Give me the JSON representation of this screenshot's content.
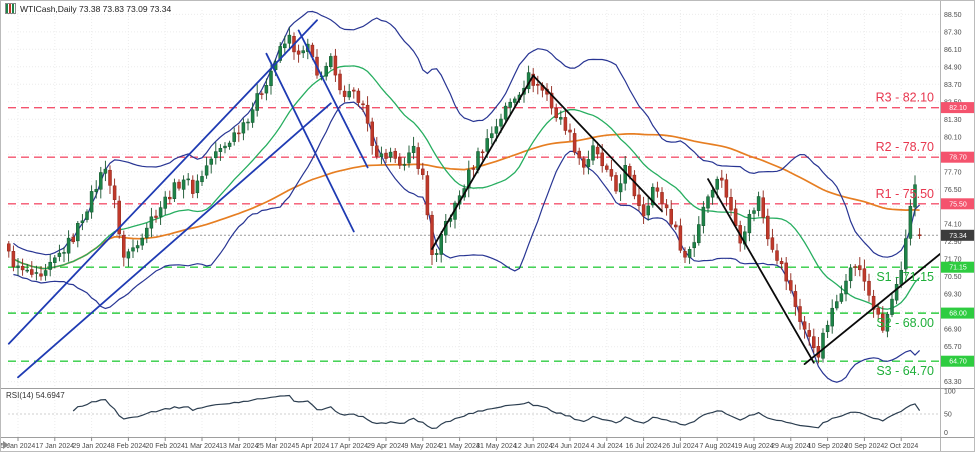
{
  "window": {
    "title": "WTICash,Daily 73.38 73.83 73.09 73.34"
  },
  "colors": {
    "up": "#1d8348",
    "up_stroke": "#14532d",
    "down": "#c0392b",
    "down_stroke": "#8e2418",
    "bollinger": "#283593",
    "ma_fast": "#27ae60",
    "ma_slow": "#e67e22",
    "trend_blue": "#1f3bb3",
    "trend_black": "#0a0a0a",
    "resistance": "#f4536d",
    "resistance_text": "#e8374f",
    "support": "#2ecc40",
    "support_text": "#1faf3a",
    "grid": "#ececec",
    "axis_text": "#4a4a4a",
    "current_badge": "#3d3d3d",
    "rsi_line": "#2c3e50"
  },
  "chart_data": {
    "type": "candlestick",
    "symbol": "WTICash",
    "timeframe": "Daily",
    "current_bar": {
      "open": 73.38,
      "high": 73.83,
      "low": 73.09,
      "close": 73.34
    },
    "current_price": 73.34,
    "y_ticks": [
      63.3,
      64.5,
      65.7,
      66.9,
      68.1,
      69.3,
      70.5,
      71.7,
      72.9,
      74.1,
      75.3,
      76.5,
      77.7,
      78.9,
      80.1,
      81.3,
      82.5,
      83.7,
      84.9,
      86.1,
      87.3,
      88.5
    ],
    "x_labels": [
      "5 Jan 2024",
      "17 Jan 2024",
      "29 Jan 2024",
      "8 Feb 2024",
      "20 Feb 2024",
      "1 Mar 2024",
      "13 Mar 2024",
      "25 Mar 2024",
      "5 Apr 2024",
      "17 Apr 2024",
      "29 Apr 2024",
      "9 May 2024",
      "21 May 2024",
      "31 May 2024",
      "12 Jun 2024",
      "24 Jun 2024",
      "4 Jul 2024",
      "16 Jul 2024",
      "26 Jul 2024",
      "7 Aug 2024",
      "19 Aug 2024",
      "29 Aug 2024",
      "10 Sep 2024",
      "20 Sep 2024",
      "2 Oct 2024"
    ],
    "bars_per_label": 8,
    "first_label_index": 2,
    "bar_count": 199,
    "price_anchors": [
      [
        0,
        72.0
      ],
      [
        2,
        71.0
      ],
      [
        5,
        70.6
      ],
      [
        7,
        70.2
      ],
      [
        10,
        71.6
      ],
      [
        14,
        73.2
      ],
      [
        18,
        76.0
      ],
      [
        21,
        78.2
      ],
      [
        23,
        75.5
      ],
      [
        25,
        71.8
      ],
      [
        27,
        72.5
      ],
      [
        31,
        74.5
      ],
      [
        35,
        76.2
      ],
      [
        38,
        77.3
      ],
      [
        40,
        76.5
      ],
      [
        44,
        78.6
      ],
      [
        47,
        79.5
      ],
      [
        52,
        81.5
      ],
      [
        55,
        83.3
      ],
      [
        59,
        86.0
      ],
      [
        61,
        86.9
      ],
      [
        63,
        85.5
      ],
      [
        65,
        86.3
      ],
      [
        67,
        84.2
      ],
      [
        70,
        85.3
      ],
      [
        72,
        83.0
      ],
      [
        74,
        83.5
      ],
      [
        77,
        82.2
      ],
      [
        79,
        79.2
      ],
      [
        82,
        78.3
      ],
      [
        84,
        79.0
      ],
      [
        86,
        78.0
      ],
      [
        88,
        79.3
      ],
      [
        90,
        77.3
      ],
      [
        92,
        72.2
      ],
      [
        93,
        71.9
      ],
      [
        95,
        74.2
      ],
      [
        97,
        75.3
      ],
      [
        100,
        77.5
      ],
      [
        102,
        78.9
      ],
      [
        105,
        80.4
      ],
      [
        108,
        82.0
      ],
      [
        111,
        83.3
      ],
      [
        113,
        84.2
      ],
      [
        117,
        83.0
      ],
      [
        119,
        81.5
      ],
      [
        121,
        80.9
      ],
      [
        123,
        79.4
      ],
      [
        125,
        78.1
      ],
      [
        127,
        79.2
      ],
      [
        130,
        77.6
      ],
      [
        132,
        76.4
      ],
      [
        134,
        77.9
      ],
      [
        136,
        76.2
      ],
      [
        138,
        74.9
      ],
      [
        140,
        76.6
      ],
      [
        143,
        75.2
      ],
      [
        145,
        73.6
      ],
      [
        147,
        71.8
      ],
      [
        149,
        73.0
      ],
      [
        151,
        75.4
      ],
      [
        153,
        76.8
      ],
      [
        155,
        77.3
      ],
      [
        157,
        74.9
      ],
      [
        159,
        73.2
      ],
      [
        161,
        74.6
      ],
      [
        163,
        75.9
      ],
      [
        165,
        73.4
      ],
      [
        168,
        71.2
      ],
      [
        170,
        69.4
      ],
      [
        172,
        67.6
      ],
      [
        174,
        66.2
      ],
      [
        176,
        65.3
      ],
      [
        178,
        67.3
      ],
      [
        180,
        68.8
      ],
      [
        182,
        70.6
      ],
      [
        184,
        71.3
      ],
      [
        186,
        70.2
      ],
      [
        188,
        68.4
      ],
      [
        190,
        66.8
      ],
      [
        192,
        68.9
      ],
      [
        194,
        70.6
      ],
      [
        195,
        72.8
      ],
      [
        196,
        75.3
      ],
      [
        197,
        76.9
      ],
      [
        198,
        73.34
      ]
    ],
    "spikes": [
      {
        "i": 61,
        "high": 87.6
      },
      {
        "i": 92,
        "low": 71.3
      },
      {
        "i": 176,
        "low": 64.55
      },
      {
        "i": 197,
        "high": 77.45
      }
    ],
    "levels": [
      {
        "name": "R3",
        "label": "R3 - 82.10",
        "value": 82.1,
        "kind": "resistance"
      },
      {
        "name": "R2",
        "label": "R2 - 78.70",
        "value": 78.7,
        "kind": "resistance"
      },
      {
        "name": "R1",
        "label": "R1 - 75.50",
        "value": 75.5,
        "kind": "resistance"
      },
      {
        "name": "S1",
        "label": "S1 - 71.15",
        "value": 71.15,
        "kind": "support"
      },
      {
        "name": "S2",
        "label": "S2 - 68.00",
        "value": 68.0,
        "kind": "support"
      },
      {
        "name": "S3",
        "label": "S3 - 64.70",
        "value": 64.7,
        "kind": "support"
      }
    ],
    "trendlines": [
      {
        "name": "ascending-channel-upper",
        "color": "blue",
        "points": [
          [
            0,
            65.9
          ],
          [
            67,
            88.1
          ]
        ]
      },
      {
        "name": "ascending-channel-lower",
        "color": "blue",
        "points": [
          [
            2,
            63.6
          ],
          [
            70,
            82.4
          ]
        ]
      },
      {
        "name": "descending-line-1",
        "color": "blue",
        "points": [
          [
            56,
            85.8
          ],
          [
            75,
            73.6
          ]
        ]
      },
      {
        "name": "descending-line-2",
        "color": "blue",
        "points": [
          [
            63,
            87.4
          ],
          [
            78,
            78.0
          ]
        ]
      },
      {
        "name": "zigzag-up",
        "color": "black",
        "points": [
          [
            92,
            72.4
          ],
          [
            114,
            84.3
          ]
        ]
      },
      {
        "name": "zigzag-down",
        "color": "black",
        "points": [
          [
            114,
            84.3
          ],
          [
            142,
            75.0
          ]
        ]
      },
      {
        "name": "september-decline",
        "color": "black",
        "points": [
          [
            152,
            77.2
          ],
          [
            175,
            64.6
          ]
        ]
      },
      {
        "name": "recovery-support",
        "color": "black",
        "points": [
          [
            173,
            64.5
          ],
          [
            203,
            72.2
          ]
        ]
      }
    ],
    "indicators": {
      "bollinger": {
        "period": 20,
        "deviation": 2
      },
      "ma_fast": {
        "period": 20
      },
      "ma_slow": {
        "period": 100
      },
      "rsi": {
        "label": "RSI(14) 54.6947",
        "period": 14,
        "value": 54.6947,
        "scale": [
          100,
          50,
          0
        ]
      }
    }
  }
}
